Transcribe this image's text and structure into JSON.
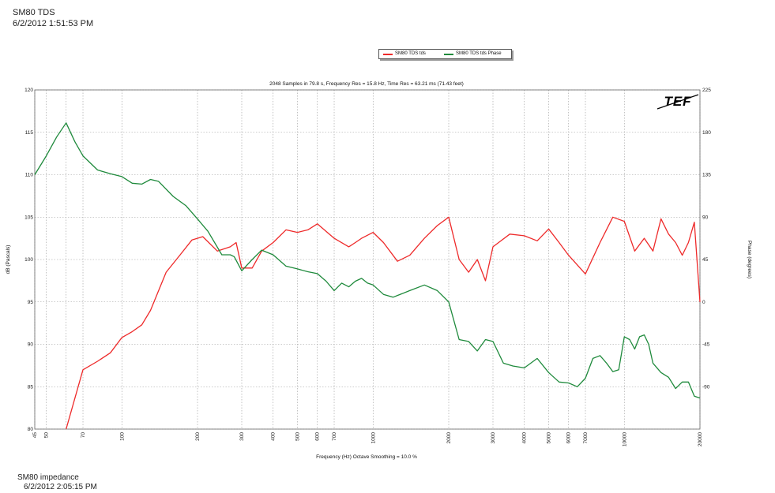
{
  "header": {
    "title": "SM80 TDS",
    "date": "6/2/2012 1:51:53 PM"
  },
  "footer": {
    "title": "SM80 impedance",
    "date": "6/2/2012 2:05:15 PM"
  },
  "logo_text": "TEF",
  "colors": {
    "magnitude": "#ee2a2a",
    "phase": "#1f8a3c",
    "grid": "#9a9a9a"
  },
  "chart_data": {
    "type": "line",
    "title": "2048 Samples in 79.8 s, Frequency Res = 15.8 Hz, Time Res = 63.21 ms (71.43 feet)",
    "xlabel": "Frequency (Hz) Octave Smoothing = 10.0 %",
    "ylabel": "dB (Pascals)",
    "y2label": "Phase (degrees)",
    "xscale": "log",
    "xlim": [
      45,
      20000
    ],
    "ylim": [
      80,
      120
    ],
    "y2lim": [
      -135,
      225
    ],
    "grid": true,
    "legend_position": "top-center",
    "x_ticks": [
      45,
      50,
      60,
      70,
      100,
      200,
      300,
      400,
      500,
      600,
      700,
      1000,
      2000,
      3000,
      4000,
      5000,
      6000,
      7000,
      10000,
      20000
    ],
    "x_tick_labels": [
      "45",
      "50",
      "",
      "70",
      "100",
      "200",
      "300",
      "400",
      "500",
      "600",
      "700",
      "1000",
      "2000",
      "3000",
      "4000",
      "5000",
      "6000",
      "7000",
      "10000",
      "20000"
    ],
    "y_ticks": [
      80,
      85,
      90,
      95,
      100,
      105,
      110,
      115,
      120
    ],
    "y2_ticks": [
      -90,
      -45,
      0,
      45,
      90,
      135,
      180,
      225
    ],
    "series": [
      {
        "name": "SM80 TDS tds",
        "axis": "left",
        "x": [
          60,
          70,
          80,
          90,
          100,
          110,
          120,
          130,
          150,
          170,
          190,
          210,
          240,
          270,
          285,
          300,
          330,
          360,
          400,
          450,
          500,
          550,
          600,
          700,
          800,
          850,
          900,
          1000,
          1100,
          1250,
          1400,
          1600,
          1800,
          2000,
          2200,
          2400,
          2600,
          2800,
          3000,
          3500,
          4000,
          4500,
          5000,
          5500,
          6000,
          7000,
          8000,
          9000,
          10000,
          11000,
          12000,
          13000,
          14000,
          15000,
          16000,
          17000,
          18000,
          19000,
          20000
        ],
        "y": [
          80,
          87,
          88,
          89,
          90.8,
          91.5,
          92.3,
          94,
          98.5,
          100.5,
          102.3,
          102.7,
          101,
          101.5,
          102,
          99,
          99,
          101,
          102,
          103.5,
          103.2,
          103.5,
          104.2,
          102.5,
          101.5,
          102,
          102.5,
          103.2,
          102,
          99.8,
          100.5,
          102.5,
          104,
          105,
          100,
          98.5,
          100,
          97.5,
          101.5,
          103,
          102.8,
          102.2,
          103.6,
          102,
          100.5,
          98.3,
          102,
          105,
          104.5,
          101,
          102.5,
          101,
          104.8,
          103,
          102,
          100.5,
          102,
          104.4,
          95
        ]
      },
      {
        "name": "SM80 TDS tds Phase",
        "axis": "right",
        "x": [
          45,
          50,
          55,
          60,
          65,
          70,
          80,
          90,
          100,
          110,
          120,
          130,
          140,
          160,
          180,
          200,
          220,
          250,
          270,
          280,
          300,
          330,
          360,
          400,
          450,
          500,
          550,
          600,
          650,
          700,
          750,
          800,
          850,
          900,
          950,
          1000,
          1100,
          1200,
          1400,
          1600,
          1800,
          2000,
          2200,
          2400,
          2600,
          2800,
          3000,
          3300,
          3600,
          4000,
          4500,
          5000,
          5500,
          6000,
          6500,
          7000,
          7500,
          8000,
          8500,
          9000,
          9500,
          10000,
          10500,
          11000,
          11500,
          12000,
          12500,
          13000,
          14000,
          15000,
          16000,
          17000,
          18000,
          19000,
          20000
        ],
        "y": [
          135,
          155,
          175,
          190,
          170,
          155,
          140,
          136,
          133,
          126,
          125,
          130,
          128,
          112,
          102,
          88,
          75,
          50,
          50,
          48,
          33,
          45,
          55,
          50,
          38,
          35,
          32,
          30,
          22,
          12,
          20,
          16,
          22,
          25,
          20,
          18,
          8,
          5,
          12,
          18,
          12,
          0,
          -40,
          -42,
          -52,
          -40,
          -42,
          -65,
          -68,
          -70,
          -60,
          -75,
          -85,
          -86,
          -90,
          -81,
          -60,
          -57,
          -65,
          -74,
          -72,
          -37,
          -40,
          -50,
          -37,
          -35,
          -45,
          -65,
          -75,
          -80,
          -92,
          -85,
          -85,
          -100,
          -102
        ]
      }
    ]
  }
}
